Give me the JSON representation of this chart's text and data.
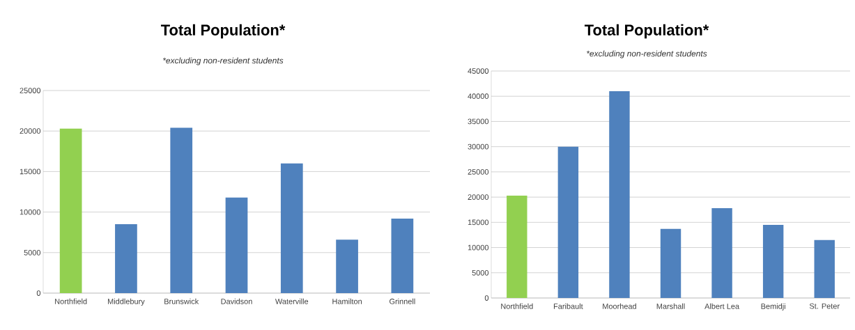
{
  "chart_data": [
    {
      "type": "bar",
      "title": "Total Population*",
      "subtitle": "*excluding non-resident students",
      "categories": [
        "Northfield",
        "Middlebury",
        "Brunswick",
        "Davidson",
        "Waterville",
        "Hamilton",
        "Grinnell"
      ],
      "values": [
        20300,
        8500,
        20400,
        11800,
        16000,
        6600,
        9200
      ],
      "colors": [
        "#92d050",
        "#4f81bd",
        "#4f81bd",
        "#4f81bd",
        "#4f81bd",
        "#4f81bd",
        "#4f81bd"
      ],
      "ylim": [
        0,
        25000
      ],
      "yticks": [
        0,
        5000,
        10000,
        15000,
        20000,
        25000
      ],
      "grid": "y"
    },
    {
      "type": "bar",
      "title": "Total Population*",
      "subtitle": "*excluding non-resident students",
      "categories": [
        "Northfield",
        "Faribault",
        "Moorhead",
        "Marshall",
        "Albert Lea",
        "Bemidji",
        "St. Peter"
      ],
      "values": [
        20300,
        30000,
        41000,
        13700,
        17800,
        14500,
        11500
      ],
      "colors": [
        "#92d050",
        "#4f81bd",
        "#4f81bd",
        "#4f81bd",
        "#4f81bd",
        "#4f81bd",
        "#4f81bd"
      ],
      "ylim": [
        0,
        45000
      ],
      "yticks": [
        0,
        5000,
        10000,
        15000,
        20000,
        25000,
        30000,
        35000,
        40000,
        45000
      ],
      "grid": "y"
    }
  ]
}
